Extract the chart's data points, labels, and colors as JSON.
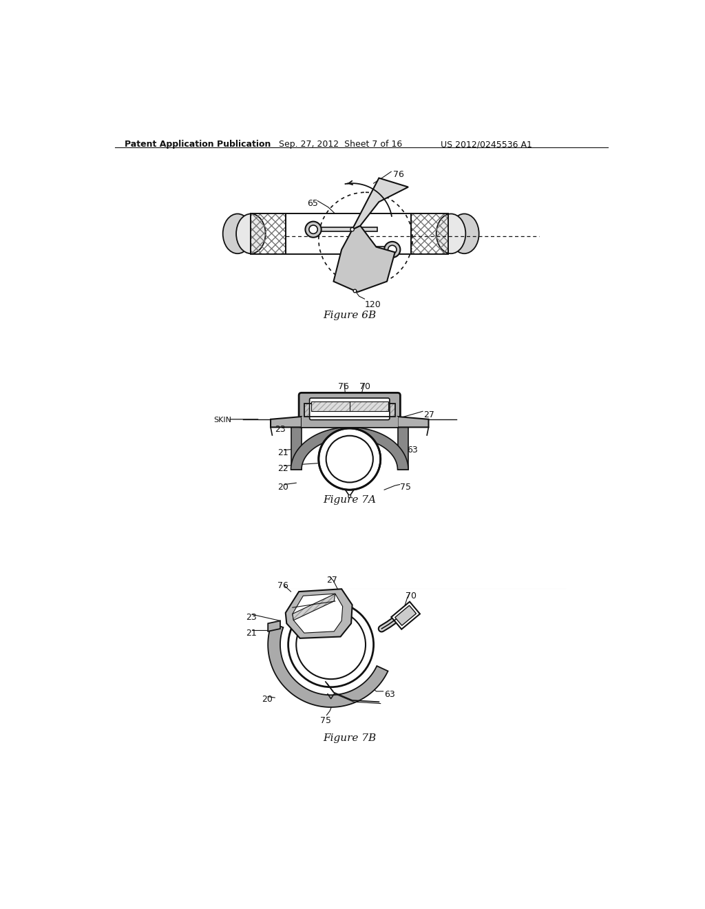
{
  "background_color": "#ffffff",
  "header_left": "Patent Application Publication",
  "header_mid": "Sep. 27, 2012  Sheet 7 of 16",
  "header_right": "US 2012/0245536 A1",
  "fig6b_caption": "Figure 6B",
  "fig7a_caption": "Figure 7A",
  "fig7b_caption": "Figure 7B",
  "lc": "#111111",
  "gray_fill": "#c0c0c0",
  "gray_dark": "#555555",
  "gray_light": "#e8e8e8",
  "white": "#ffffff"
}
